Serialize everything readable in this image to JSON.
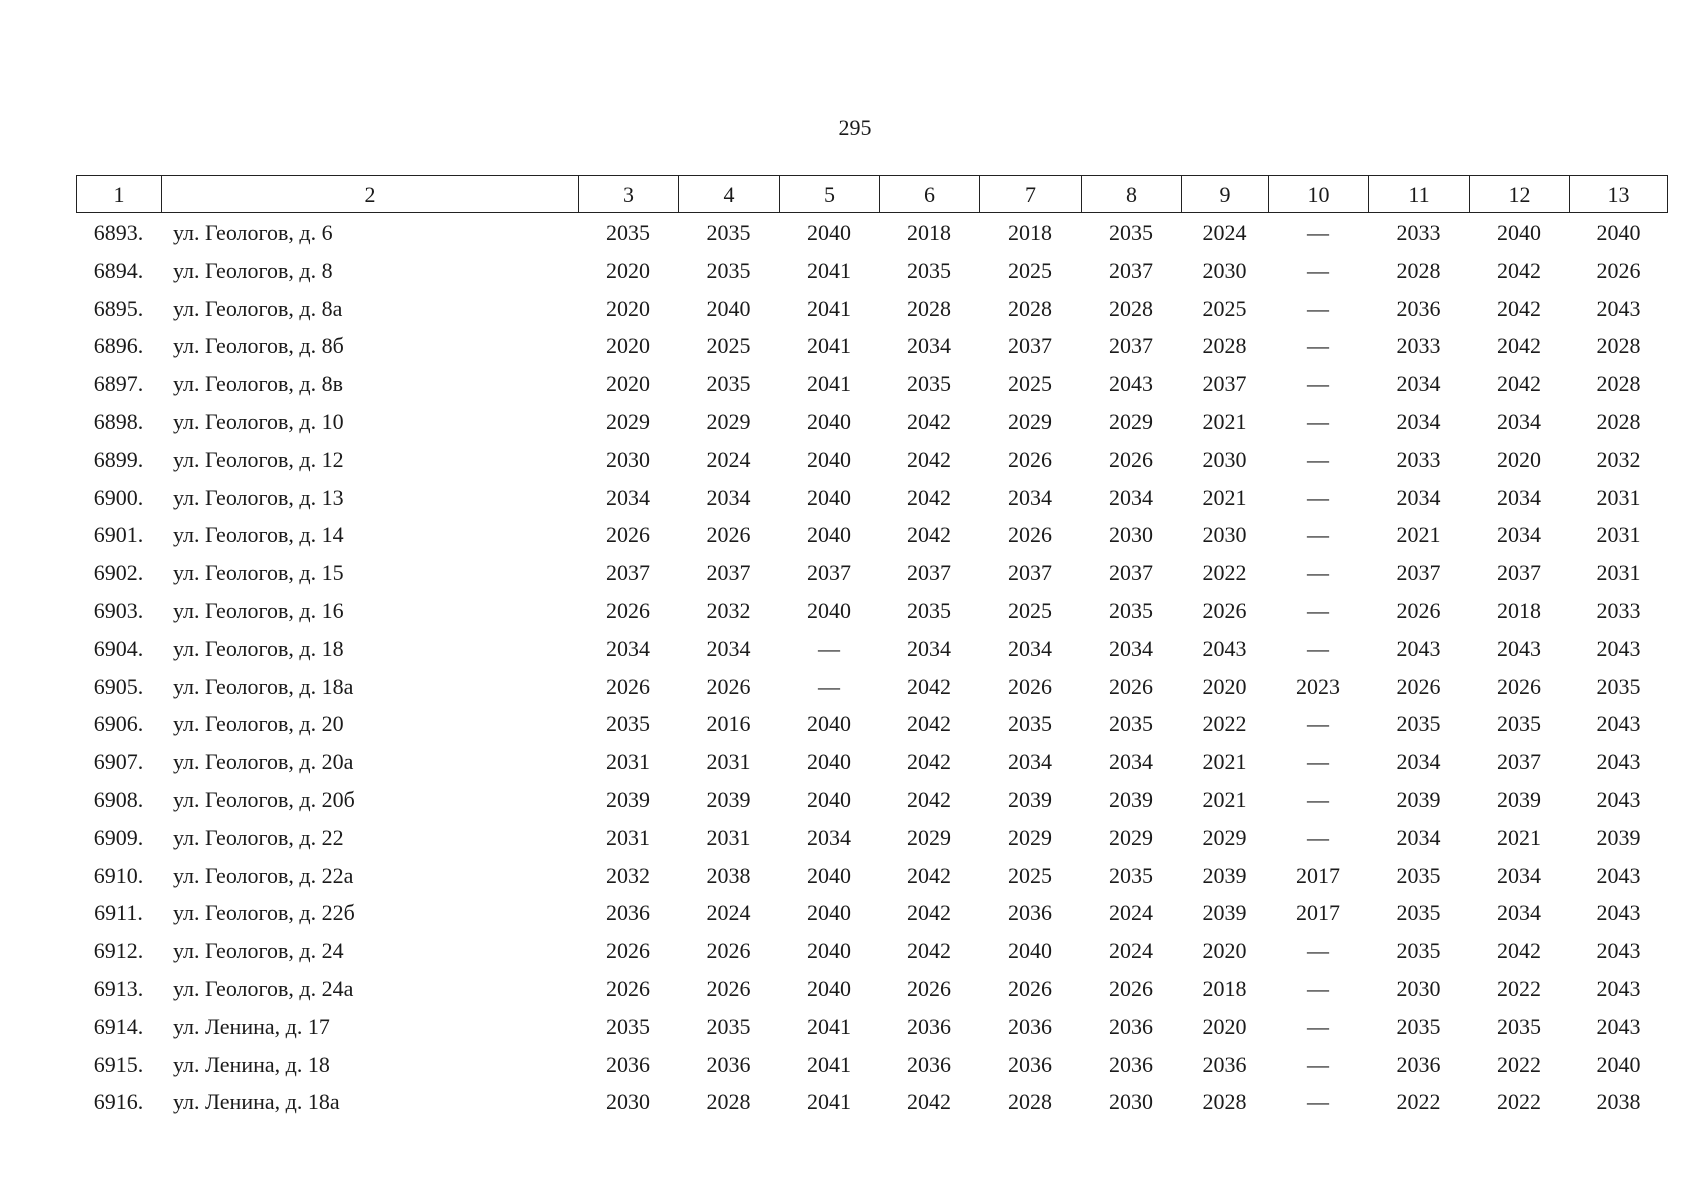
{
  "page_number": 295,
  "table": {
    "header": [
      1,
      2,
      3,
      4,
      5,
      6,
      7,
      8,
      9,
      10,
      11,
      12,
      13
    ],
    "rows": [
      [
        "6893.",
        "ул. Геологов, д. 6",
        2035,
        2035,
        2040,
        2018,
        2018,
        2035,
        2024,
        "—",
        2033,
        2040,
        2040
      ],
      [
        "6894.",
        "ул. Геологов, д. 8",
        2020,
        2035,
        2041,
        2035,
        2025,
        2037,
        2030,
        "—",
        2028,
        2042,
        2026
      ],
      [
        "6895.",
        "ул. Геологов, д. 8а",
        2020,
        2040,
        2041,
        2028,
        2028,
        2028,
        2025,
        "—",
        2036,
        2042,
        2043
      ],
      [
        "6896.",
        "ул. Геологов, д. 8б",
        2020,
        2025,
        2041,
        2034,
        2037,
        2037,
        2028,
        "—",
        2033,
        2042,
        2028
      ],
      [
        "6897.",
        "ул. Геологов, д. 8в",
        2020,
        2035,
        2041,
        2035,
        2025,
        2043,
        2037,
        "—",
        2034,
        2042,
        2028
      ],
      [
        "6898.",
        "ул. Геологов, д. 10",
        2029,
        2029,
        2040,
        2042,
        2029,
        2029,
        2021,
        "—",
        2034,
        2034,
        2028
      ],
      [
        "6899.",
        "ул. Геологов, д. 12",
        2030,
        2024,
        2040,
        2042,
        2026,
        2026,
        2030,
        "—",
        2033,
        2020,
        2032
      ],
      [
        "6900.",
        "ул. Геологов, д. 13",
        2034,
        2034,
        2040,
        2042,
        2034,
        2034,
        2021,
        "—",
        2034,
        2034,
        2031
      ],
      [
        "6901.",
        "ул. Геологов, д. 14",
        2026,
        2026,
        2040,
        2042,
        2026,
        2030,
        2030,
        "—",
        2021,
        2034,
        2031
      ],
      [
        "6902.",
        "ул. Геологов, д. 15",
        2037,
        2037,
        2037,
        2037,
        2037,
        2037,
        2022,
        "—",
        2037,
        2037,
        2031
      ],
      [
        "6903.",
        "ул. Геологов, д. 16",
        2026,
        2032,
        2040,
        2035,
        2025,
        2035,
        2026,
        "—",
        2026,
        2018,
        2033
      ],
      [
        "6904.",
        "ул. Геологов, д. 18",
        2034,
        2034,
        "—",
        2034,
        2034,
        2034,
        2043,
        "—",
        2043,
        2043,
        2043
      ],
      [
        "6905.",
        "ул. Геологов, д. 18а",
        2026,
        2026,
        "—",
        2042,
        2026,
        2026,
        2020,
        2023,
        2026,
        2026,
        2035
      ],
      [
        "6906.",
        "ул. Геологов, д. 20",
        2035,
        2016,
        2040,
        2042,
        2035,
        2035,
        2022,
        "—",
        2035,
        2035,
        2043
      ],
      [
        "6907.",
        "ул. Геологов, д. 20а",
        2031,
        2031,
        2040,
        2042,
        2034,
        2034,
        2021,
        "—",
        2034,
        2037,
        2043
      ],
      [
        "6908.",
        "ул. Геологов, д. 20б",
        2039,
        2039,
        2040,
        2042,
        2039,
        2039,
        2021,
        "—",
        2039,
        2039,
        2043
      ],
      [
        "6909.",
        "ул. Геологов, д. 22",
        2031,
        2031,
        2034,
        2029,
        2029,
        2029,
        2029,
        "—",
        2034,
        2021,
        2039
      ],
      [
        "6910.",
        "ул. Геологов, д. 22а",
        2032,
        2038,
        2040,
        2042,
        2025,
        2035,
        2039,
        2017,
        2035,
        2034,
        2043
      ],
      [
        "6911.",
        "ул. Геологов, д. 22б",
        2036,
        2024,
        2040,
        2042,
        2036,
        2024,
        2039,
        2017,
        2035,
        2034,
        2043
      ],
      [
        "6912.",
        "ул. Геологов, д. 24",
        2026,
        2026,
        2040,
        2042,
        2040,
        2024,
        2020,
        "—",
        2035,
        2042,
        2043
      ],
      [
        "6913.",
        "ул. Геологов, д. 24а",
        2026,
        2026,
        2040,
        2026,
        2026,
        2026,
        2018,
        "—",
        2030,
        2022,
        2043
      ],
      [
        "6914.",
        "ул. Ленина, д. 17",
        2035,
        2035,
        2041,
        2036,
        2036,
        2036,
        2020,
        "—",
        2035,
        2035,
        2043
      ],
      [
        "6915.",
        "ул. Ленина, д. 18",
        2036,
        2036,
        2041,
        2036,
        2036,
        2036,
        2036,
        "—",
        2036,
        2022,
        2040
      ],
      [
        "6916.",
        "ул. Ленина, д. 18а",
        2030,
        2028,
        2041,
        2042,
        2028,
        2030,
        2028,
        "—",
        2022,
        2022,
        2038
      ]
    ]
  }
}
